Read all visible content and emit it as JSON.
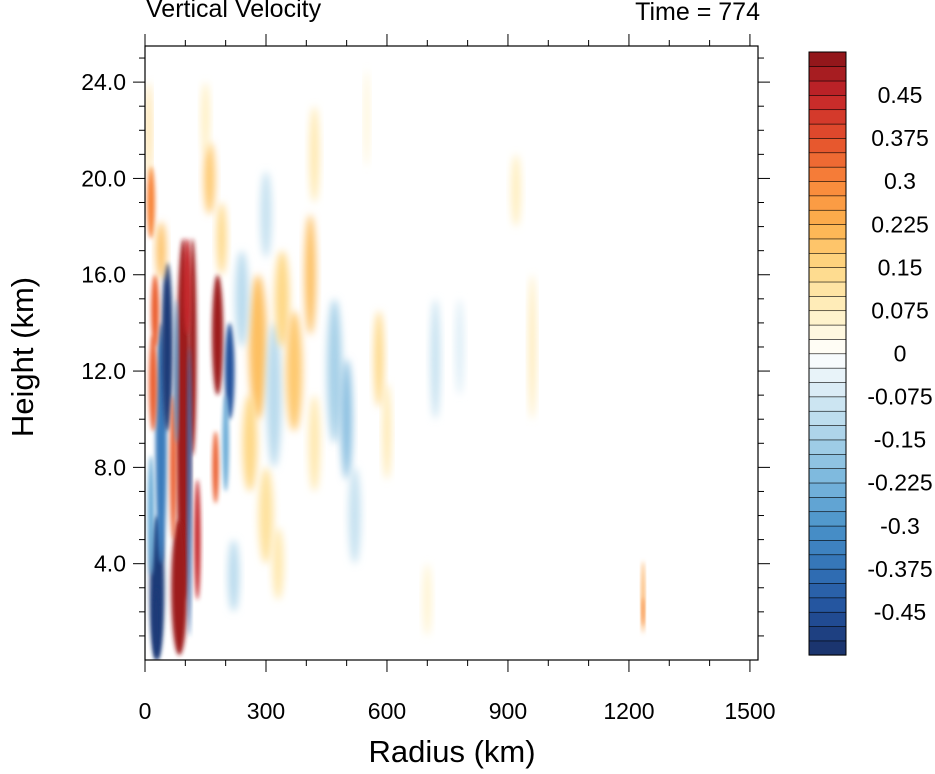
{
  "chart_data": {
    "type": "heatmap",
    "title": "Vertical Velocity",
    "time_label": "Time = 774",
    "xlabel": "Radius (km)",
    "ylabel": "Height (km)",
    "xlim": [
      0,
      1520
    ],
    "ylim": [
      0,
      25.5
    ],
    "x_ticks": [
      0,
      300,
      600,
      900,
      1200,
      1500
    ],
    "x_tick_labels": [
      "0",
      "300",
      "600",
      "900",
      "1200",
      "1500"
    ],
    "y_ticks": [
      4,
      8,
      12,
      16,
      20,
      24
    ],
    "y_tick_labels": [
      "4.0",
      "8.0",
      "12.0",
      "16.0",
      "20.0",
      "24.0"
    ],
    "colorbar": {
      "levels": [
        -0.525,
        -0.5,
        -0.475,
        -0.45,
        -0.425,
        -0.4,
        -0.375,
        -0.35,
        -0.325,
        -0.3,
        -0.275,
        -0.25,
        -0.225,
        -0.2,
        -0.175,
        -0.15,
        -0.125,
        -0.1,
        -0.075,
        -0.05,
        -0.025,
        0,
        0.025,
        0.05,
        0.075,
        0.1,
        0.125,
        0.15,
        0.175,
        0.2,
        0.225,
        0.25,
        0.275,
        0.3,
        0.325,
        0.35,
        0.375,
        0.4,
        0.425,
        0.45,
        0.475,
        0.5,
        0.525
      ],
      "tick_labels": [
        "-0.45",
        "-0.375",
        "-0.3",
        "-0.225",
        "-0.15",
        "-0.075",
        "0",
        "0.075",
        "0.15",
        "0.225",
        "0.3",
        "0.375",
        "0.45"
      ],
      "tick_values": [
        -0.45,
        -0.375,
        -0.3,
        -0.225,
        -0.15,
        -0.075,
        0,
        0.075,
        0.15,
        0.225,
        0.3,
        0.375,
        0.45
      ],
      "colormap": "blue-white-red diverging",
      "min_color": "#1a2f66",
      "mid_color": "#ffffff",
      "max_color": "#891418"
    },
    "features": [
      {
        "name": "inner strong updraft column",
        "x": [
          60,
          140
        ],
        "y": [
          0.5,
          17.5
        ],
        "value": 0.5
      },
      {
        "name": "inner strong downdraft band",
        "x": [
          10,
          60
        ],
        "y": [
          0.5,
          16.5
        ],
        "value": -0.5
      },
      {
        "name": "second updraft band",
        "x": [
          160,
          200
        ],
        "y": [
          8,
          16
        ],
        "value": 0.45
      },
      {
        "name": "downdraft near 200 km",
        "x": [
          190,
          230
        ],
        "y": [
          10,
          15
        ],
        "value": -0.4
      },
      {
        "name": "isolated updraft near 1230 km",
        "x": [
          1225,
          1240
        ],
        "y": [
          1,
          4
        ],
        "value": 0.25
      }
    ]
  }
}
